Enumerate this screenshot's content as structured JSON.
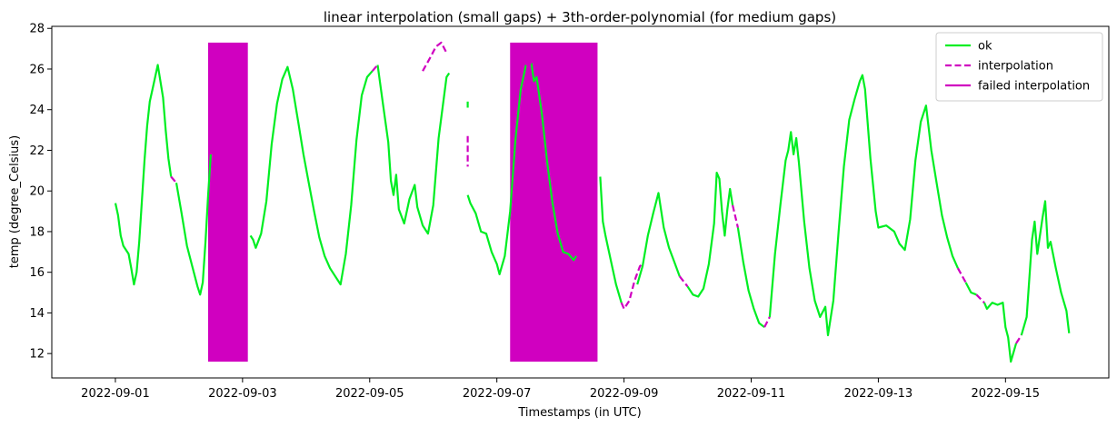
{
  "chart_data": {
    "type": "line",
    "title": "linear interpolation (small gaps) +  3th-order-polynomial (for medium gaps)",
    "xlabel": "Timestamps (in UTC)",
    "ylabel": "temp (degree_Celsius)",
    "xlim": [
      "2022-08-31T00:00",
      "2022-09-16T15:00"
    ],
    "ylim": [
      10.8,
      28.1
    ],
    "x_ticks": [
      "2022-09-01",
      "2022-09-03",
      "2022-09-05",
      "2022-09-07",
      "2022-09-09",
      "2022-09-11",
      "2022-09-13",
      "2022-09-15"
    ],
    "y_ticks": [
      12,
      14,
      16,
      18,
      20,
      22,
      24,
      26,
      28
    ],
    "legend_position": "top-right",
    "grid": false,
    "legend": [
      {
        "label": "ok",
        "style": "solid",
        "color": "#00ee22"
      },
      {
        "label": "interpolation",
        "style": "dashed",
        "color": "#d000c0"
      },
      {
        "label": "failed interpolation",
        "style": "solid",
        "color": "#d000c0"
      }
    ],
    "failed_regions": [
      {
        "x0": "2022-09-02T11:00",
        "x1": "2022-09-03T02:00",
        "y0": 11.6,
        "y1": 27.3
      },
      {
        "x0": "2022-09-07T05:00",
        "x1": "2022-09-08T14:00",
        "y0": 11.6,
        "y1": 27.3
      }
    ],
    "ok_segments": [
      [
        [
          "2022-09-01T00:00",
          19.4
        ],
        [
          "2022-09-01T01:00",
          18.8
        ],
        [
          "2022-09-01T02:00",
          17.8
        ],
        [
          "2022-09-01T03:00",
          17.3
        ],
        [
          "2022-09-01T05:00",
          16.9
        ],
        [
          "2022-09-01T06:00",
          16.2
        ],
        [
          "2022-09-01T07:00",
          15.4
        ],
        [
          "2022-09-01T08:00",
          16.0
        ],
        [
          "2022-09-01T09:00",
          17.5
        ],
        [
          "2022-09-01T10:00",
          19.5
        ],
        [
          "2022-09-01T11:00",
          21.5
        ],
        [
          "2022-09-01T12:00",
          23.2
        ],
        [
          "2022-09-01T13:00",
          24.4
        ],
        [
          "2022-09-01T14:00",
          25.0
        ],
        [
          "2022-09-01T15:00",
          25.6
        ],
        [
          "2022-09-01T16:00",
          26.2
        ],
        [
          "2022-09-01T17:00",
          25.4
        ],
        [
          "2022-09-01T18:00",
          24.6
        ],
        [
          "2022-09-01T19:00",
          23.0
        ],
        [
          "2022-09-01T20:00",
          21.6
        ],
        [
          "2022-09-01T21:00",
          20.7
        ]
      ],
      [
        [
          "2022-09-01T23:00",
          20.4
        ],
        [
          "2022-09-02T01:00",
          18.9
        ],
        [
          "2022-09-02T03:00",
          17.3
        ],
        [
          "2022-09-02T05:00",
          16.3
        ],
        [
          "2022-09-02T07:00",
          15.3
        ],
        [
          "2022-09-02T08:00",
          14.9
        ],
        [
          "2022-09-02T09:00",
          15.5
        ],
        [
          "2022-09-02T10:00",
          17.5
        ],
        [
          "2022-09-02T11:00",
          19.8
        ],
        [
          "2022-09-02T12:00",
          21.8
        ]
      ],
      [
        [
          "2022-09-03T03:00",
          17.8
        ],
        [
          "2022-09-03T04:00",
          17.6
        ],
        [
          "2022-09-03T05:00",
          17.2
        ],
        [
          "2022-09-03T07:00",
          17.9
        ],
        [
          "2022-09-03T09:00",
          19.5
        ],
        [
          "2022-09-03T11:00",
          22.3
        ],
        [
          "2022-09-03T13:00",
          24.3
        ],
        [
          "2022-09-03T15:00",
          25.5
        ],
        [
          "2022-09-03T17:00",
          26.1
        ],
        [
          "2022-09-03T19:00",
          25.0
        ],
        [
          "2022-09-03T21:00",
          23.4
        ],
        [
          "2022-09-03T23:00",
          21.8
        ],
        [
          "2022-09-04T01:00",
          20.4
        ],
        [
          "2022-09-04T03:00",
          19.0
        ],
        [
          "2022-09-04T05:00",
          17.7
        ],
        [
          "2022-09-04T07:00",
          16.8
        ],
        [
          "2022-09-04T09:00",
          16.2
        ],
        [
          "2022-09-04T11:00",
          15.8
        ],
        [
          "2022-09-04T13:00",
          15.4
        ],
        [
          "2022-09-04T15:00",
          16.9
        ],
        [
          "2022-09-04T17:00",
          19.3
        ],
        [
          "2022-09-04T19:00",
          22.5
        ],
        [
          "2022-09-04T21:00",
          24.7
        ],
        [
          "2022-09-04T23:00",
          25.6
        ],
        [
          "2022-09-05T01:00",
          25.9
        ]
      ],
      [
        [
          "2022-09-05T03:00",
          26.2
        ],
        [
          "2022-09-05T05:00",
          24.3
        ],
        [
          "2022-09-05T07:00",
          22.4
        ],
        [
          "2022-09-05T08:00",
          20.5
        ],
        [
          "2022-09-05T09:00",
          19.8
        ],
        [
          "2022-09-05T10:00",
          20.8
        ],
        [
          "2022-09-05T11:00",
          19.1
        ],
        [
          "2022-09-05T13:00",
          18.4
        ],
        [
          "2022-09-05T15:00",
          19.6
        ],
        [
          "2022-09-05T17:00",
          20.3
        ],
        [
          "2022-09-05T18:00",
          19.2
        ],
        [
          "2022-09-05T20:00",
          18.3
        ],
        [
          "2022-09-05T22:00",
          17.9
        ],
        [
          "2022-09-06T00:00",
          19.3
        ],
        [
          "2022-09-06T02:00",
          22.6
        ],
        [
          "2022-09-06T04:00",
          24.6
        ],
        [
          "2022-09-06T05:00",
          25.6
        ],
        [
          "2022-09-06T06:00",
          25.8
        ]
      ],
      [
        [
          "2022-09-06T13:00",
          24.1
        ]
      ],
      [
        [
          "2022-09-06T13:00",
          19.8
        ],
        [
          "2022-09-06T14:00",
          19.4
        ],
        [
          "2022-09-06T16:00",
          18.9
        ],
        [
          "2022-09-06T18:00",
          18.0
        ],
        [
          "2022-09-06T20:00",
          17.9
        ],
        [
          "2022-09-06T22:00",
          17.0
        ],
        [
          "2022-09-07T00:00",
          16.4
        ],
        [
          "2022-09-07T01:00",
          15.9
        ],
        [
          "2022-09-07T03:00",
          16.8
        ],
        [
          "2022-09-07T05:00",
          19.0
        ],
        [
          "2022-09-07T07:00",
          22.5
        ],
        [
          "2022-09-07T09:00",
          25.0
        ],
        [
          "2022-09-07T11:00",
          26.2
        ]
      ],
      [
        [
          "2022-09-07T13:00",
          26.3
        ],
        [
          "2022-09-07T14:00",
          25.4
        ],
        [
          "2022-09-07T15:00",
          25.6
        ],
        [
          "2022-09-07T17:00",
          23.8
        ],
        [
          "2022-09-07T19:00",
          21.4
        ],
        [
          "2022-09-07T21:00",
          19.4
        ],
        [
          "2022-09-07T23:00",
          17.9
        ],
        [
          "2022-09-08T01:00",
          17.0
        ],
        [
          "2022-09-08T03:00",
          16.9
        ],
        [
          "2022-09-08T05:00",
          16.6
        ],
        [
          "2022-09-08T06:00",
          16.8
        ]
      ],
      [
        [
          "2022-09-08T15:00",
          20.7
        ],
        [
          "2022-09-08T16:00",
          18.5
        ],
        [
          "2022-09-08T17:00",
          17.8
        ],
        [
          "2022-09-08T19:00",
          16.6
        ],
        [
          "2022-09-08T21:00",
          15.4
        ],
        [
          "2022-09-08T23:00",
          14.5
        ]
      ],
      [
        [
          "2022-09-09T05:00",
          15.4
        ],
        [
          "2022-09-09T07:00",
          16.3
        ],
        [
          "2022-09-09T09:00",
          17.8
        ],
        [
          "2022-09-09T11:00",
          18.9
        ],
        [
          "2022-09-09T13:00",
          19.9
        ],
        [
          "2022-09-09T15:00",
          18.2
        ],
        [
          "2022-09-09T17:00",
          17.2
        ],
        [
          "2022-09-09T19:00",
          16.5
        ],
        [
          "2022-09-09T21:00",
          15.8
        ]
      ],
      [
        [
          "2022-09-10T00:00",
          15.3
        ],
        [
          "2022-09-10T02:00",
          14.9
        ],
        [
          "2022-09-10T04:00",
          14.8
        ],
        [
          "2022-09-10T06:00",
          15.2
        ],
        [
          "2022-09-10T08:00",
          16.4
        ],
        [
          "2022-09-10T10:00",
          18.4
        ],
        [
          "2022-09-10T11:00",
          20.9
        ],
        [
          "2022-09-10T12:00",
          20.6
        ],
        [
          "2022-09-10T13:00",
          19.0
        ],
        [
          "2022-09-10T14:00",
          17.8
        ],
        [
          "2022-09-10T15:00",
          19.1
        ],
        [
          "2022-09-10T16:00",
          20.1
        ],
        [
          "2022-09-10T17:00",
          19.3
        ]
      ],
      [
        [
          "2022-09-10T19:00",
          18.2
        ],
        [
          "2022-09-10T21:00",
          16.5
        ],
        [
          "2022-09-10T23:00",
          15.1
        ],
        [
          "2022-09-11T01:00",
          14.2
        ],
        [
          "2022-09-11T03:00",
          13.5
        ],
        [
          "2022-09-11T05:00",
          13.3
        ]
      ],
      [
        [
          "2022-09-11T07:00",
          13.8
        ],
        [
          "2022-09-11T09:00",
          16.9
        ],
        [
          "2022-09-11T11:00",
          19.3
        ],
        [
          "2022-09-11T13:00",
          21.5
        ],
        [
          "2022-09-11T14:00",
          22.0
        ],
        [
          "2022-09-11T15:00",
          22.9
        ],
        [
          "2022-09-11T16:00",
          21.8
        ],
        [
          "2022-09-11T17:00",
          22.6
        ],
        [
          "2022-09-11T18:00",
          21.4
        ],
        [
          "2022-09-11T20:00",
          18.5
        ],
        [
          "2022-09-11T22:00",
          16.2
        ],
        [
          "2022-09-12T00:00",
          14.6
        ],
        [
          "2022-09-12T02:00",
          13.8
        ],
        [
          "2022-09-12T04:00",
          14.3
        ],
        [
          "2022-09-12T05:00",
          12.9
        ],
        [
          "2022-09-12T07:00",
          14.6
        ],
        [
          "2022-09-12T09:00",
          18.0
        ],
        [
          "2022-09-12T11:00",
          21.2
        ],
        [
          "2022-09-12T13:00",
          23.5
        ],
        [
          "2022-09-12T15:00",
          24.5
        ],
        [
          "2022-09-12T17:00",
          25.4
        ],
        [
          "2022-09-12T18:00",
          25.7
        ],
        [
          "2022-09-12T19:00",
          25.0
        ],
        [
          "2022-09-12T21:00",
          21.6
        ],
        [
          "2022-09-12T23:00",
          19.0
        ],
        [
          "2022-09-13T00:00",
          18.2
        ],
        [
          "2022-09-13T03:00",
          18.3
        ],
        [
          "2022-09-13T06:00",
          18.0
        ],
        [
          "2022-09-13T08:00",
          17.4
        ],
        [
          "2022-09-13T10:00",
          17.1
        ],
        [
          "2022-09-13T12:00",
          18.6
        ],
        [
          "2022-09-13T14:00",
          21.5
        ],
        [
          "2022-09-13T16:00",
          23.4
        ],
        [
          "2022-09-13T18:00",
          24.2
        ],
        [
          "2022-09-13T20:00",
          22.0
        ],
        [
          "2022-09-13T22:00",
          20.4
        ],
        [
          "2022-09-14T00:00",
          18.8
        ],
        [
          "2022-09-14T02:00",
          17.7
        ],
        [
          "2022-09-14T04:00",
          16.8
        ],
        [
          "2022-09-14T06:00",
          16.2
        ]
      ],
      [
        [
          "2022-09-14T09:00",
          15.5
        ],
        [
          "2022-09-14T11:00",
          15.0
        ],
        [
          "2022-09-14T13:00",
          14.9
        ]
      ],
      [
        [
          "2022-09-14T16:00",
          14.5
        ],
        [
          "2022-09-14T17:00",
          14.2
        ],
        [
          "2022-09-14T19:00",
          14.5
        ],
        [
          "2022-09-14T21:00",
          14.4
        ],
        [
          "2022-09-14T23:00",
          14.5
        ],
        [
          "2022-09-15T00:00",
          13.3
        ],
        [
          "2022-09-15T01:00",
          12.8
        ],
        [
          "2022-09-15T02:00",
          11.6
        ],
        [
          "2022-09-15T04:00",
          12.5
        ]
      ],
      [
        [
          "2022-09-15T06:00",
          12.9
        ],
        [
          "2022-09-15T08:00",
          13.8
        ],
        [
          "2022-09-15T10:00",
          17.6
        ],
        [
          "2022-09-15T11:00",
          18.5
        ],
        [
          "2022-09-15T12:00",
          16.9
        ],
        [
          "2022-09-15T14:00",
          18.7
        ],
        [
          "2022-09-15T15:00",
          19.5
        ],
        [
          "2022-09-15T16:00",
          17.2
        ],
        [
          "2022-09-15T17:00",
          17.5
        ],
        [
          "2022-09-15T19:00",
          16.2
        ],
        [
          "2022-09-15T21:00",
          15.0
        ],
        [
          "2022-09-15T23:00",
          14.1
        ],
        [
          "2022-09-16T00:00",
          13.0
        ]
      ]
    ],
    "interpolation_segments": [
      [
        [
          "2022-09-01T21:00",
          20.7
        ],
        [
          "2022-09-01T23:00",
          20.4
        ]
      ],
      [
        [
          "2022-09-05T01:00",
          25.9
        ],
        [
          "2022-09-05T03:00",
          26.2
        ]
      ],
      [
        [
          "2022-09-05T20:00",
          25.9
        ],
        [
          "2022-09-05T23:00",
          26.6
        ],
        [
          "2022-09-06T01:00",
          27.1
        ],
        [
          "2022-09-06T03:00",
          27.3
        ],
        [
          "2022-09-06T05:00",
          26.8
        ]
      ],
      [
        [
          "2022-09-06T13:00",
          22.7
        ],
        [
          "2022-09-06T13:00",
          21.2
        ]
      ],
      [
        [
          "2022-09-07T11:00",
          26.2
        ],
        [
          "2022-09-07T13:00",
          26.3
        ]
      ],
      [
        [
          "2022-09-08T23:00",
          14.5
        ],
        [
          "2022-09-09T00:00",
          14.2
        ],
        [
          "2022-09-09T02:00",
          14.6
        ],
        [
          "2022-09-09T04:00",
          15.6
        ],
        [
          "2022-09-09T06:00",
          16.3
        ],
        [
          "2022-09-09T07:00",
          16.4
        ]
      ],
      [
        [
          "2022-09-09T21:00",
          15.8
        ],
        [
          "2022-09-10T00:00",
          15.3
        ]
      ],
      [
        [
          "2022-09-10T17:00",
          19.3
        ],
        [
          "2022-09-10T19:00",
          18.2
        ]
      ],
      [
        [
          "2022-09-11T05:00",
          13.3
        ],
        [
          "2022-09-11T07:00",
          13.8
        ]
      ],
      [
        [
          "2022-09-14T06:00",
          16.2
        ],
        [
          "2022-09-14T09:00",
          15.5
        ]
      ],
      [
        [
          "2022-09-14T13:00",
          14.9
        ],
        [
          "2022-09-14T16:00",
          14.5
        ]
      ],
      [
        [
          "2022-09-15T04:00",
          12.5
        ],
        [
          "2022-09-15T06:00",
          12.9
        ]
      ]
    ]
  },
  "colors": {
    "ok": "#00ee22",
    "interpolation": "#d000c0",
    "failed": "#d000c0"
  }
}
